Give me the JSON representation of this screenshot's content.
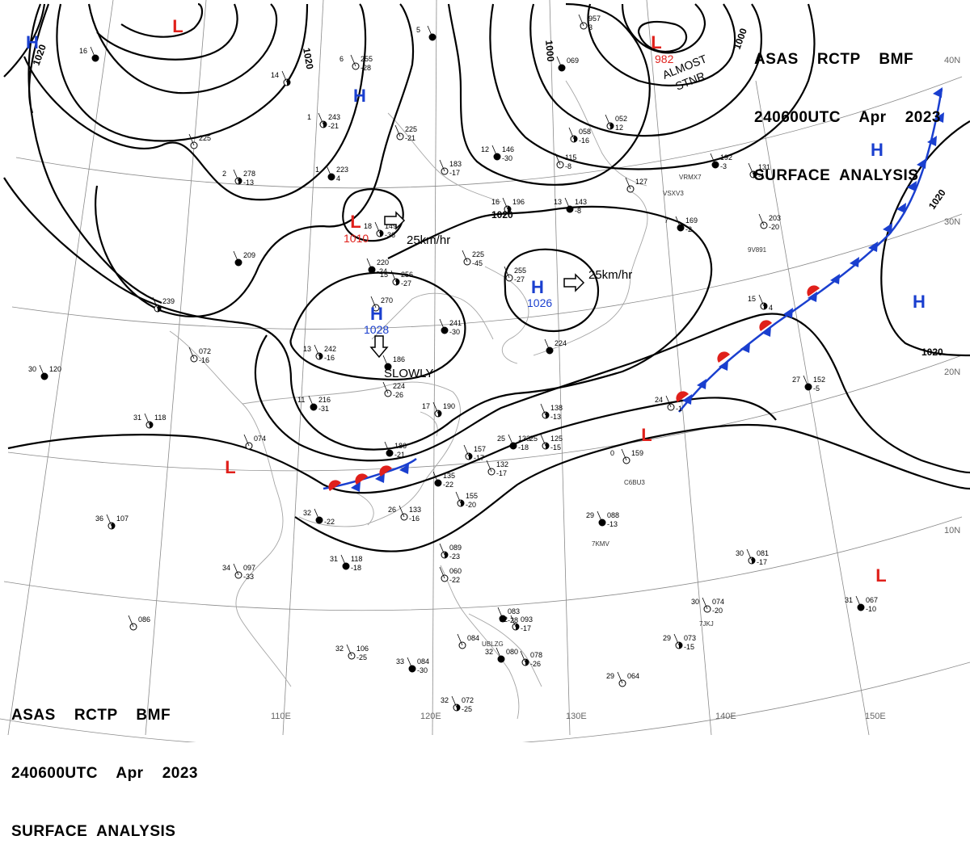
{
  "header_top_right": {
    "line1": "ASAS    RCTP    BMF",
    "line2": "240600UTC    Apr    2023",
    "line3": "SURFACE  ANALYSIS"
  },
  "header_bottom_left": {
    "line1": "ASAS    RCTP    BMF",
    "line2": "240600UTC    Apr    2023",
    "line3": "SURFACE  ANALYSIS"
  },
  "longitude_labels": [
    "110E",
    "120E",
    "130E",
    "140E",
    "150E"
  ],
  "latitude_labels": [
    "40N",
    "30N",
    "20N",
    "10N"
  ],
  "isobar_labels": [
    {
      "text": "1020"
    },
    {
      "text": "1020"
    },
    {
      "text": "1000"
    },
    {
      "text": "1000"
    },
    {
      "text": "1020"
    },
    {
      "text": "1020"
    },
    {
      "text": "1020"
    }
  ],
  "pressure_centers": [
    {
      "type": "H",
      "value": "",
      "color": "#1a3fcf"
    },
    {
      "type": "L",
      "value": "",
      "color": "#e0201b"
    },
    {
      "type": "L",
      "value": "982",
      "color": "#e0201b"
    },
    {
      "type": "H",
      "value": "",
      "color": "#1a3fcf"
    },
    {
      "type": "L",
      "value": "1010",
      "color": "#e0201b"
    },
    {
      "type": "H",
      "value": "1028",
      "color": "#1a3fcf"
    },
    {
      "type": "H",
      "value": "1026",
      "color": "#1a3fcf"
    },
    {
      "type": "H",
      "value": "",
      "color": "#1a3fcf"
    },
    {
      "type": "H",
      "value": "",
      "color": "#1a3fcf"
    },
    {
      "type": "L",
      "value": "",
      "color": "#e0201b"
    },
    {
      "type": "L",
      "value": "",
      "color": "#e0201b"
    },
    {
      "type": "L",
      "value": "",
      "color": "#e0201b"
    }
  ],
  "annotations": {
    "almost_stnr": "ALMOST STNR",
    "motion_1010": "25km/hr",
    "motion_1026": "25km/hr",
    "motion_1028": "SLOWLY"
  },
  "station_plots": [
    {
      "t": "16",
      "p": "",
      "w": ""
    },
    {
      "t": "14",
      "p": "",
      "w": ""
    },
    {
      "t": "6",
      "p": "255",
      "w": "-28"
    },
    {
      "t": "5",
      "p": "",
      "w": ""
    },
    {
      "t": "1",
      "p": "243",
      "w": "-21"
    },
    {
      "t": "",
      "p": "225",
      "w": "-21"
    },
    {
      "t": "1",
      "p": "223",
      "w": "4"
    },
    {
      "t": "2",
      "p": "278",
      "w": "-13"
    },
    {
      "t": "",
      "p": "183",
      "w": "-17"
    },
    {
      "t": "12",
      "p": "146",
      "w": "-30"
    },
    {
      "t": "",
      "p": "058",
      "w": "-16"
    },
    {
      "t": "",
      "p": "115",
      "w": "-8"
    },
    {
      "t": "13",
      "p": "143",
      "w": "-8"
    },
    {
      "t": "",
      "p": "052",
      "w": "12"
    },
    {
      "t": "",
      "p": "127",
      "w": ""
    },
    {
      "t": "",
      "p": "192",
      "w": "-3"
    },
    {
      "t": "",
      "p": "131",
      "w": "-1"
    },
    {
      "t": "",
      "p": "203",
      "w": "-20"
    },
    {
      "t": "7",
      "p": "169",
      "w": "-2"
    },
    {
      "t": "16",
      "p": "196",
      "w": ""
    },
    {
      "t": "",
      "p": "225",
      "w": "-45"
    },
    {
      "t": "",
      "p": "220",
      "w": "-24"
    },
    {
      "t": "15",
      "p": "256",
      "w": "-27"
    },
    {
      "t": "",
      "p": "270",
      "w": ""
    },
    {
      "t": "",
      "p": "241",
      "w": "-30"
    },
    {
      "t": "13",
      "p": "242",
      "w": "-16"
    },
    {
      "t": "",
      "p": "224",
      "w": "-26"
    },
    {
      "t": "11",
      "p": "216",
      "w": "-31"
    },
    {
      "t": "17",
      "p": "190",
      "w": ""
    },
    {
      "t": "",
      "p": "255",
      "w": "-27"
    },
    {
      "t": "",
      "p": "224",
      "w": ""
    },
    {
      "t": "",
      "p": "138",
      "w": "-13"
    },
    {
      "t": "24",
      "p": "",
      "w": "-1"
    },
    {
      "t": "27",
      "p": "152",
      "w": "-5"
    },
    {
      "t": "15",
      "p": "",
      "w": "4"
    },
    {
      "t": "",
      "p": "072",
      "w": "-16"
    },
    {
      "t": "30",
      "p": "120",
      "w": ""
    },
    {
      "t": "31",
      "p": "118",
      "w": ""
    },
    {
      "t": "",
      "p": "074",
      "w": ""
    },
    {
      "t": "",
      "p": "186",
      "w": "-21"
    },
    {
      "t": "",
      "p": "157",
      "w": "-17"
    },
    {
      "t": "",
      "p": "132",
      "w": "-17"
    },
    {
      "t": "25",
      "p": "133",
      "w": "-18"
    },
    {
      "t": "25",
      "p": "125",
      "w": "-15"
    },
    {
      "t": "0",
      "p": "159",
      "w": ""
    },
    {
      "t": "",
      "p": "135",
      "w": "-22"
    },
    {
      "t": "",
      "p": "155",
      "w": "-20"
    },
    {
      "t": "26",
      "p": "133",
      "w": "-16"
    },
    {
      "t": "32",
      "p": "",
      "w": "-22"
    },
    {
      "t": "36",
      "p": "107",
      "w": ""
    },
    {
      "t": "34",
      "p": "097",
      "w": "-33"
    },
    {
      "t": "31",
      "p": "118",
      "w": "-18"
    },
    {
      "t": "",
      "p": "089",
      "w": "-23"
    },
    {
      "t": "",
      "p": "060",
      "w": "-22"
    },
    {
      "t": "29",
      "p": "088",
      "w": "-13"
    },
    {
      "t": "30",
      "p": "081",
      "w": "-17"
    },
    {
      "t": "30",
      "p": "074",
      "w": "-20"
    },
    {
      "t": "31",
      "p": "067",
      "w": "-10"
    },
    {
      "t": "29",
      "p": "073",
      "w": "-15"
    },
    {
      "t": "29",
      "p": "064",
      "w": ""
    },
    {
      "t": "",
      "p": "083",
      "w": "-28"
    },
    {
      "t": "32",
      "p": "093",
      "w": "-17"
    },
    {
      "t": "",
      "p": "084",
      "w": ""
    },
    {
      "t": "32",
      "p": "080",
      "w": ""
    },
    {
      "t": "",
      "p": "078",
      "w": "-26"
    },
    {
      "t": "32",
      "p": "106",
      "w": "-25"
    },
    {
      "t": "33",
      "p": "084",
      "w": "-30"
    },
    {
      "t": "32",
      "p": "072",
      "w": "-25"
    },
    {
      "t": "",
      "p": "086",
      "w": ""
    },
    {
      "t": "",
      "p": "209",
      "w": ""
    },
    {
      "t": "",
      "p": "239",
      "w": ""
    },
    {
      "t": "",
      "p": "225",
      "w": ""
    },
    {
      "t": "",
      "p": "186",
      "w": ""
    },
    {
      "t": "18",
      "p": "149",
      "w": "-36"
    },
    {
      "t": "",
      "p": "957",
      "w": "3"
    },
    {
      "t": "",
      "p": "069",
      "w": ""
    }
  ],
  "ship_ids": [
    "VSXV3",
    "VRMX7",
    "9V891",
    "C6BU3",
    "7KMV",
    "7JKJ",
    "UBLZG"
  ]
}
